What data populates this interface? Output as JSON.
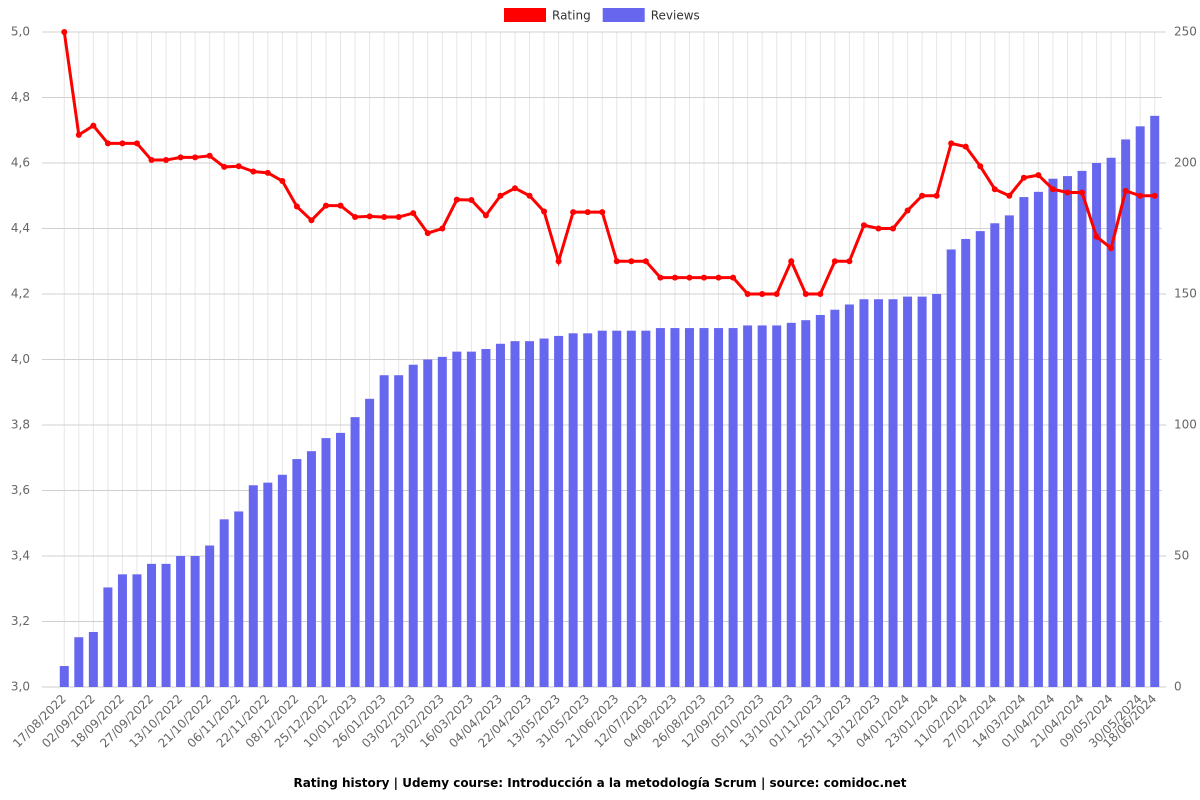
{
  "chart_data": {
    "type": "bar_line",
    "title": "Rating history | Udemy course: Introducción a la metodología Scrum | source: comidoc.net",
    "categories": [
      "17/08/2022",
      null,
      "02/09/2022",
      null,
      "18/09/2022",
      null,
      "27/09/2022",
      null,
      "13/10/2022",
      null,
      "21/10/2022",
      null,
      "06/11/2022",
      null,
      "22/11/2022",
      null,
      "08/12/2022",
      null,
      "25/12/2022",
      null,
      "10/01/2023",
      null,
      "26/01/2023",
      null,
      "03/02/2023",
      null,
      "23/02/2023",
      null,
      "16/03/2023",
      null,
      "04/04/2023",
      null,
      "22/04/2023",
      null,
      "13/05/2023",
      null,
      "31/05/2023",
      null,
      "21/06/2023",
      null,
      "12/07/2023",
      null,
      "04/08/2023",
      null,
      "26/08/2023",
      null,
      "12/09/2023",
      null,
      "05/10/2023",
      null,
      "13/10/2023",
      null,
      "01/11/2023",
      null,
      "25/11/2023",
      null,
      "13/12/2023",
      null,
      "04/01/2024",
      null,
      "23/01/2024",
      null,
      "11/02/2024",
      null,
      "27/02/2024",
      null,
      "14/03/2024",
      null,
      "01/04/2024",
      null,
      "21/04/2024",
      null,
      "09/05/2024",
      null,
      "30/05/2024",
      "18/06/2024"
    ],
    "series": [
      {
        "name": "Rating",
        "color": "#ff0000",
        "kind": "line",
        "axis": "y",
        "values": [
          5.0,
          4.686,
          4.714,
          4.66,
          4.66,
          4.66,
          4.609,
          4.609,
          4.617,
          4.617,
          4.622,
          4.588,
          4.59,
          4.574,
          4.57,
          4.545,
          4.467,
          4.425,
          4.47,
          4.47,
          4.435,
          4.437,
          4.435,
          4.435,
          4.447,
          4.386,
          4.4,
          4.488,
          4.487,
          4.44,
          4.5,
          4.523,
          4.5,
          4.452,
          4.3,
          4.45,
          4.45,
          4.45,
          4.3,
          4.3,
          4.3,
          4.25,
          4.25,
          4.25,
          4.25,
          4.25,
          4.25,
          4.2,
          4.2,
          4.2,
          4.3,
          4.2,
          4.2,
          4.3,
          4.3,
          4.41,
          4.4,
          4.4,
          4.455,
          4.5,
          4.5,
          4.66,
          4.65,
          4.59,
          4.52,
          4.5,
          4.555,
          4.563,
          4.52,
          4.51,
          4.51,
          4.375,
          4.34,
          4.515,
          4.5,
          4.5
        ]
      },
      {
        "name": "Reviews",
        "color": "#6666ee",
        "kind": "bar",
        "axis": "y2",
        "values": [
          8,
          19,
          21,
          38,
          43,
          43,
          47,
          47,
          50,
          50,
          54,
          64,
          67,
          77,
          78,
          81,
          87,
          90,
          95,
          97,
          103,
          110,
          119,
          119,
          123,
          125,
          126,
          128,
          128,
          129,
          131,
          132,
          132,
          133,
          134,
          135,
          135,
          136,
          136,
          136,
          136,
          137,
          137,
          137,
          137,
          137,
          137,
          138,
          138,
          138,
          139,
          140,
          142,
          144,
          146,
          148,
          148,
          148,
          149,
          149,
          150,
          167,
          171,
          174,
          177,
          180,
          187,
          189,
          194,
          195,
          197,
          200,
          202,
          209,
          214,
          218
        ]
      }
    ],
    "ylim": [
      3,
      5
    ],
    "yticks": [
      {
        "value": 3,
        "label": "3,0"
      },
      {
        "value": 3.2,
        "label": "3,2"
      },
      {
        "value": 3.4,
        "label": "3,4"
      },
      {
        "value": 3.6,
        "label": "3,6"
      },
      {
        "value": 3.8,
        "label": "3,8"
      },
      {
        "value": 4,
        "label": "4,0"
      },
      {
        "value": 4.2,
        "label": "4,2"
      },
      {
        "value": 4.4,
        "label": "4,4"
      },
      {
        "value": 4.6,
        "label": "4,6"
      },
      {
        "value": 4.8,
        "label": "4,8"
      },
      {
        "value": 5,
        "label": "5,0"
      }
    ],
    "y2lim": [
      0,
      250
    ],
    "y2ticks": [
      0,
      50,
      100,
      150,
      200,
      250
    ],
    "grid": true,
    "legend": "top"
  }
}
